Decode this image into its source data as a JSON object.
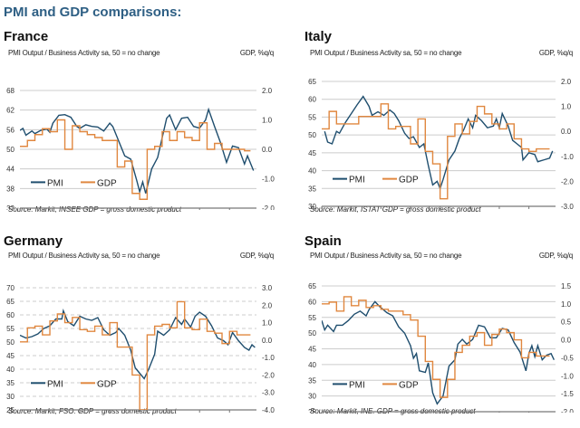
{
  "header": {
    "title": "PMI and GDP comparisons:"
  },
  "colors": {
    "pmi": "#1f4e6e",
    "gdp": "#e0873f",
    "grid": "#cccccc",
    "title": "#2e5f84"
  },
  "chart_data": [
    {
      "id": "france",
      "type": "line",
      "title": "France",
      "ylabel": "PMI Output / Business Activity sa, 50 = no change",
      "y2label": "GDP, %q/q",
      "source": "Source: Markit, INSEE GDP = gross domestic product",
      "grid": "solid",
      "legend": {
        "position": "lower-left",
        "entries": [
          "PMI",
          "GDP"
        ]
      },
      "x_ticks": [
        "2005",
        "2006",
        "2007",
        "2008",
        "2009",
        "2010",
        "2011",
        "2012"
      ],
      "xlim": [
        2005,
        2012.9
      ],
      "ylim": [
        32,
        68
      ],
      "y_ticks": [
        32,
        38,
        44,
        50,
        56,
        62,
        68
      ],
      "y_tick_labels": [
        "32",
        "38",
        "44",
        "50",
        "56",
        "62",
        "68"
      ],
      "y2lim": [
        -2.0,
        2.0
      ],
      "y2_ticks": [
        -2.0,
        -1.0,
        0.0,
        1.0,
        2.0
      ],
      "y2_tick_labels": [
        "-2.0",
        "-1.0",
        "0.0",
        "1.0",
        "2.0"
      ],
      "series": [
        {
          "name": "PMI",
          "axis": "left",
          "x": [
            2005.0,
            2005.1,
            2005.2,
            2005.4,
            2005.5,
            2005.7,
            2005.9,
            2006.0,
            2006.1,
            2006.3,
            2006.5,
            2006.7,
            2006.9,
            2007.0,
            2007.2,
            2007.4,
            2007.6,
            2007.8,
            2008.0,
            2008.1,
            2008.3,
            2008.5,
            2008.7,
            2008.9,
            2009.0,
            2009.1,
            2009.2,
            2009.4,
            2009.6,
            2009.8,
            2009.9,
            2010.0,
            2010.2,
            2010.4,
            2010.6,
            2010.8,
            2011.0,
            2011.2,
            2011.3,
            2011.5,
            2011.7,
            2011.9,
            2012.1,
            2012.3,
            2012.5,
            2012.6,
            2012.8
          ],
          "values": [
            55.8,
            56.4,
            54.3,
            55.6,
            54.8,
            55.8,
            56.2,
            55.2,
            58.0,
            60.4,
            60.6,
            59.8,
            57.0,
            56.4,
            57.5,
            57.0,
            56.8,
            55.6,
            58.0,
            57.0,
            52.5,
            48.0,
            47.0,
            40.5,
            37.0,
            40.0,
            36.5,
            44.0,
            47.5,
            55.5,
            59.5,
            60.5,
            56.0,
            59.5,
            59.8,
            57.0,
            56.5,
            59.0,
            62.2,
            57.0,
            52.0,
            46.0,
            51.0,
            50.5,
            45.5,
            48.0,
            43.5
          ]
        },
        {
          "name": "GDP",
          "axis": "right",
          "x": [
            2005.0,
            2005.25,
            2005.5,
            2005.75,
            2006.0,
            2006.25,
            2006.5,
            2006.75,
            2007.0,
            2007.25,
            2007.5,
            2007.75,
            2008.0,
            2008.25,
            2008.5,
            2008.75,
            2009.0,
            2009.25,
            2009.5,
            2009.75,
            2010.0,
            2010.25,
            2010.5,
            2010.75,
            2011.0,
            2011.25,
            2011.5,
            2011.75,
            2012.0,
            2012.25,
            2012.5
          ],
          "values": [
            0.1,
            0.3,
            0.5,
            0.7,
            0.6,
            1.0,
            0.0,
            0.8,
            0.6,
            0.5,
            0.4,
            0.3,
            0.3,
            -0.6,
            -0.4,
            -1.5,
            -1.7,
            0.0,
            0.1,
            0.6,
            0.3,
            0.6,
            0.4,
            0.3,
            0.9,
            0.0,
            0.2,
            0.0,
            0.0,
            0.0,
            -0.05
          ]
        }
      ]
    },
    {
      "id": "italy",
      "type": "line",
      "title": "Italy",
      "ylabel": "PMI Output / Business Activity sa, 50 = no change",
      "y2label": "GDP, %q/q",
      "source": "Source: Markit, ISTAT GDP = gross domestic product",
      "grid": "solid",
      "legend": {
        "position": "lower-left",
        "entries": [
          "PMI",
          "GDP"
        ]
      },
      "x_ticks": [
        "2005",
        "2006",
        "2007",
        "2008",
        "2009",
        "2010",
        "2011",
        "2012"
      ],
      "xlim": [
        2005,
        2012.9
      ],
      "ylim": [
        30,
        65
      ],
      "y_ticks": [
        30,
        35,
        40,
        45,
        50,
        55,
        60,
        65
      ],
      "y_tick_labels": [
        "30",
        "35",
        "40",
        "45",
        "50",
        "55",
        "60",
        "65"
      ],
      "y2lim": [
        -3.0,
        2.0
      ],
      "y2_ticks": [
        -3.0,
        -2.0,
        -1.0,
        0.0,
        1.0,
        2.0
      ],
      "y2_tick_labels": [
        "-3.0",
        "-2.0",
        "-1.0",
        "0.0",
        "1.0",
        "2.0"
      ],
      "series": [
        {
          "name": "PMI",
          "axis": "left",
          "x": [
            2005.1,
            2005.2,
            2005.35,
            2005.5,
            2005.6,
            2005.8,
            2006.0,
            2006.2,
            2006.4,
            2006.6,
            2006.7,
            2006.9,
            2007.1,
            2007.3,
            2007.45,
            2007.6,
            2007.8,
            2007.95,
            2008.1,
            2008.3,
            2008.45,
            2008.6,
            2008.75,
            2008.9,
            2009.0,
            2009.1,
            2009.3,
            2009.5,
            2009.65,
            2009.8,
            2009.95,
            2010.1,
            2010.2,
            2010.4,
            2010.6,
            2010.8,
            2010.9,
            2011.0,
            2011.1,
            2011.3,
            2011.45,
            2011.6,
            2011.75,
            2011.8,
            2012.0,
            2012.2,
            2012.3,
            2012.5,
            2012.7,
            2012.8
          ],
          "values": [
            51.0,
            48.0,
            47.5,
            51.0,
            50.5,
            53.5,
            56.0,
            58.5,
            60.8,
            58.0,
            55.5,
            56.5,
            55.5,
            57.0,
            56.0,
            54.0,
            50.5,
            49.0,
            49.5,
            46.5,
            47.5,
            41.5,
            36.0,
            37.0,
            35.0,
            37.5,
            43.0,
            45.5,
            49.0,
            51.5,
            54.5,
            52.0,
            55.5,
            54.0,
            52.0,
            52.5,
            54.5,
            52.0,
            56.0,
            52.5,
            48.5,
            47.5,
            46.5,
            43.0,
            45.0,
            44.5,
            42.5,
            43.0,
            43.5,
            45.5
          ]
        },
        {
          "name": "GDP",
          "axis": "right",
          "x": [
            2005.0,
            2005.25,
            2005.5,
            2005.75,
            2006.0,
            2006.25,
            2006.5,
            2006.75,
            2007.0,
            2007.25,
            2007.5,
            2007.75,
            2008.0,
            2008.25,
            2008.5,
            2008.75,
            2009.0,
            2009.25,
            2009.5,
            2009.75,
            2010.0,
            2010.25,
            2010.5,
            2010.75,
            2011.0,
            2011.25,
            2011.5,
            2011.75,
            2012.0,
            2012.25,
            2012.5
          ],
          "values": [
            0.1,
            0.8,
            0.3,
            0.3,
            0.3,
            0.6,
            0.6,
            0.6,
            1.1,
            0.1,
            0.2,
            0.2,
            -0.5,
            0.5,
            -0.8,
            -1.3,
            -2.7,
            -0.2,
            0.3,
            -0.1,
            0.4,
            1.0,
            0.7,
            0.3,
            0.1,
            0.3,
            -0.3,
            -0.7,
            -0.8,
            -0.7,
            -0.7
          ]
        }
      ]
    },
    {
      "id": "germany",
      "type": "line",
      "title": "Germany",
      "ylabel": "PMI Output / Business Activity sa, 50 = no change",
      "y2label": "GDP, %q/q",
      "source": "Source: Markit, FSO. GDP = gross domestic product",
      "grid": "dashed",
      "legend": {
        "position": "lower-left",
        "entries": [
          "PMI",
          "GDP"
        ]
      },
      "x_ticks": [
        "2005",
        "2006",
        "2007",
        "2008",
        "2009",
        "2010",
        "2011",
        "2012"
      ],
      "xlim": [
        2005,
        2012.9
      ],
      "ylim": [
        25,
        70
      ],
      "y_ticks": [
        25,
        30,
        35,
        40,
        45,
        50,
        55,
        60,
        65,
        70
      ],
      "y_tick_labels": [
        "25",
        "30",
        "35",
        "40",
        "45",
        "50",
        "55",
        "60",
        "65",
        "70"
      ],
      "y2lim": [
        -4.0,
        3.0
      ],
      "y2_ticks": [
        -4.0,
        -3.0,
        -2.0,
        -1.0,
        0.0,
        1.0,
        2.0,
        3.0
      ],
      "y2_tick_labels": [
        "-4.0",
        "-3.0",
        "-2.0",
        "-1.0",
        "0.0",
        "1.0",
        "2.0",
        "3.0"
      ],
      "series": [
        {
          "name": "PMI",
          "axis": "left",
          "x": [
            2005.0,
            2005.2,
            2005.4,
            2005.6,
            2005.8,
            2006.0,
            2006.2,
            2006.4,
            2006.45,
            2006.6,
            2006.8,
            2007.0,
            2007.2,
            2007.4,
            2007.6,
            2007.8,
            2008.0,
            2008.2,
            2008.3,
            2008.5,
            2008.7,
            2008.85,
            2009.0,
            2009.15,
            2009.3,
            2009.5,
            2009.6,
            2009.8,
            2010.0,
            2010.2,
            2010.4,
            2010.5,
            2010.7,
            2010.85,
            2011.0,
            2011.2,
            2011.4,
            2011.6,
            2011.8,
            2011.95,
            2012.1,
            2012.3,
            2012.5,
            2012.65,
            2012.75,
            2012.85
          ],
          "values": [
            52.5,
            51.5,
            52.0,
            53.0,
            55.0,
            56.0,
            58.5,
            58.5,
            61.5,
            57.5,
            56.0,
            59.5,
            58.5,
            58.0,
            59.0,
            54.5,
            52.5,
            53.5,
            55.0,
            52.5,
            47.0,
            40.5,
            38.5,
            36.5,
            40.0,
            45.5,
            54.0,
            52.5,
            54.5,
            59.0,
            56.5,
            58.5,
            55.5,
            59.5,
            61.0,
            59.5,
            56.0,
            51.5,
            50.5,
            49.0,
            53.5,
            50.5,
            48.0,
            47.0,
            49.0,
            48.0
          ]
        },
        {
          "name": "GDP",
          "axis": "right",
          "x": [
            2005.0,
            2005.25,
            2005.5,
            2005.75,
            2006.0,
            2006.25,
            2006.5,
            2006.75,
            2007.0,
            2007.25,
            2007.5,
            2007.75,
            2008.0,
            2008.25,
            2008.5,
            2008.75,
            2009.0,
            2009.25,
            2009.5,
            2009.75,
            2010.0,
            2010.25,
            2010.5,
            2010.75,
            2011.0,
            2011.25,
            2011.5,
            2011.75,
            2012.0,
            2012.25,
            2012.5
          ],
          "values": [
            -0.1,
            0.7,
            0.8,
            0.3,
            1.1,
            1.5,
            1.0,
            1.3,
            0.6,
            0.5,
            0.8,
            0.3,
            1.0,
            -0.4,
            -0.4,
            -2.0,
            -4.0,
            0.3,
            0.8,
            0.9,
            0.7,
            2.2,
            0.7,
            0.6,
            1.2,
            0.5,
            0.4,
            -0.2,
            0.5,
            0.3,
            0.3
          ]
        }
      ]
    },
    {
      "id": "spain",
      "type": "line",
      "title": "Spain",
      "ylabel": "PMI Output / Business Activity sa, 50 = no change",
      "y2label": "GDP, %q/q",
      "source": "Source: Markit, INE. GDP = gross domestic product",
      "grid": "solid",
      "legend": {
        "position": "lower-left",
        "entries": [
          "PMI",
          "GDP"
        ]
      },
      "x_ticks": [
        "2005",
        "2006",
        "2007",
        "2008",
        "2009",
        "2010",
        "2011",
        "2012"
      ],
      "xlim": [
        2005,
        2012.9
      ],
      "ylim": [
        25,
        65
      ],
      "y_ticks": [
        25,
        30,
        35,
        40,
        45,
        50,
        55,
        60,
        65
      ],
      "y_tick_labels": [
        "25",
        "30",
        "35",
        "40",
        "45",
        "50",
        "55",
        "60",
        "65"
      ],
      "y2lim": [
        -2.0,
        1.5
      ],
      "y2_ticks": [
        -2.0,
        -1.5,
        -1.0,
        -0.5,
        0.0,
        0.5,
        1.0,
        1.5
      ],
      "y2_tick_labels": [
        "-2.0",
        "-1.5",
        "-1.0",
        "-0.5",
        "0.0",
        "0.5",
        "1.0",
        "1.5"
      ],
      "series": [
        {
          "name": "PMI",
          "axis": "left",
          "x": [
            2005.0,
            2005.1,
            2005.2,
            2005.4,
            2005.5,
            2005.7,
            2005.9,
            2006.1,
            2006.3,
            2006.5,
            2006.6,
            2006.8,
            2006.95,
            2007.2,
            2007.4,
            2007.6,
            2007.8,
            2008.0,
            2008.1,
            2008.2,
            2008.3,
            2008.5,
            2008.6,
            2008.75,
            2008.9,
            2009.1,
            2009.3,
            2009.5,
            2009.6,
            2009.75,
            2009.9,
            2010.1,
            2010.3,
            2010.5,
            2010.7,
            2010.9,
            2011.1,
            2011.3,
            2011.5,
            2011.7,
            2011.9,
            2012.0,
            2012.1,
            2012.2,
            2012.3,
            2012.45,
            2012.6,
            2012.75,
            2012.85
          ],
          "values": [
            54.0,
            51.0,
            52.5,
            50.5,
            52.5,
            52.5,
            54.0,
            56.0,
            57.0,
            55.5,
            57.5,
            60.0,
            58.5,
            56.5,
            55.5,
            52.0,
            50.0,
            46.0,
            42.0,
            43.5,
            38.0,
            37.5,
            40.5,
            31.0,
            27.5,
            30.0,
            39.5,
            41.5,
            46.5,
            48.0,
            46.5,
            48.0,
            52.5,
            52.0,
            48.5,
            48.5,
            51.5,
            51.0,
            47.0,
            44.0,
            38.0,
            43.5,
            46.0,
            42.5,
            46.0,
            41.5,
            43.0,
            43.5,
            41.5
          ]
        },
        {
          "name": "GDP",
          "axis": "right",
          "x": [
            2005.0,
            2005.25,
            2005.5,
            2005.75,
            2006.0,
            2006.25,
            2006.5,
            2006.75,
            2007.0,
            2007.25,
            2007.5,
            2007.75,
            2008.0,
            2008.25,
            2008.5,
            2008.75,
            2009.0,
            2009.25,
            2009.5,
            2009.75,
            2010.0,
            2010.25,
            2010.5,
            2010.75,
            2011.0,
            2011.25,
            2011.5,
            2011.75,
            2012.0,
            2012.25,
            2012.5
          ],
          "values": [
            1.0,
            1.05,
            0.8,
            1.2,
            0.95,
            1.1,
            0.9,
            0.95,
            0.85,
            0.8,
            0.8,
            0.7,
            0.55,
            0.1,
            -0.6,
            -1.1,
            -1.6,
            -1.1,
            -0.35,
            -0.15,
            0.1,
            0.2,
            -0.15,
            0.15,
            0.3,
            0.2,
            0.0,
            -0.5,
            -0.35,
            -0.45,
            -0.45
          ]
        }
      ]
    }
  ]
}
